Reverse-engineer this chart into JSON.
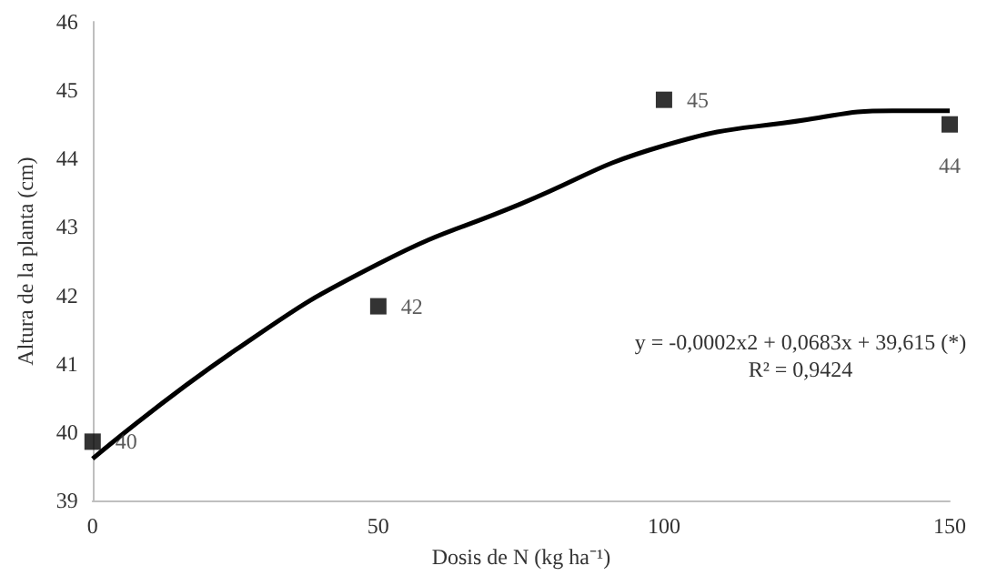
{
  "chart_data": {
    "type": "scatter",
    "xlabel": "Dosis de N (kg ha⁻¹)",
    "ylabel": "Altura de la planta (cm)",
    "xlim": [
      0,
      150
    ],
    "xticks": [
      0,
      50,
      100,
      150
    ],
    "ylim": [
      39,
      46
    ],
    "yticks": [
      39,
      40,
      41,
      42,
      43,
      44,
      45,
      46
    ],
    "grid": false,
    "marker": "square",
    "series": [
      {
        "color": "#000000",
        "x": [
          0,
          50,
          100,
          150
        ],
        "values": [
          39.86,
          41.84,
          44.86,
          44.5
        ],
        "value_labels": [
          "40",
          "42",
          "45",
          "44"
        ]
      },
      {
        "type": "line",
        "color": "#000000",
        "marker": "none",
        "line_style": "solid",
        "x": [
          0,
          25,
          50,
          75,
          100,
          125,
          140,
          150
        ],
        "values": [
          39.61,
          41.2,
          42.46,
          43.34,
          44.19,
          44.57,
          44.7,
          44.7
        ]
      }
    ],
    "annotations": [
      "y = -0,0002x2 + 0,0683x + 39,615 (*)",
      "R² = 0,9424"
    ]
  }
}
